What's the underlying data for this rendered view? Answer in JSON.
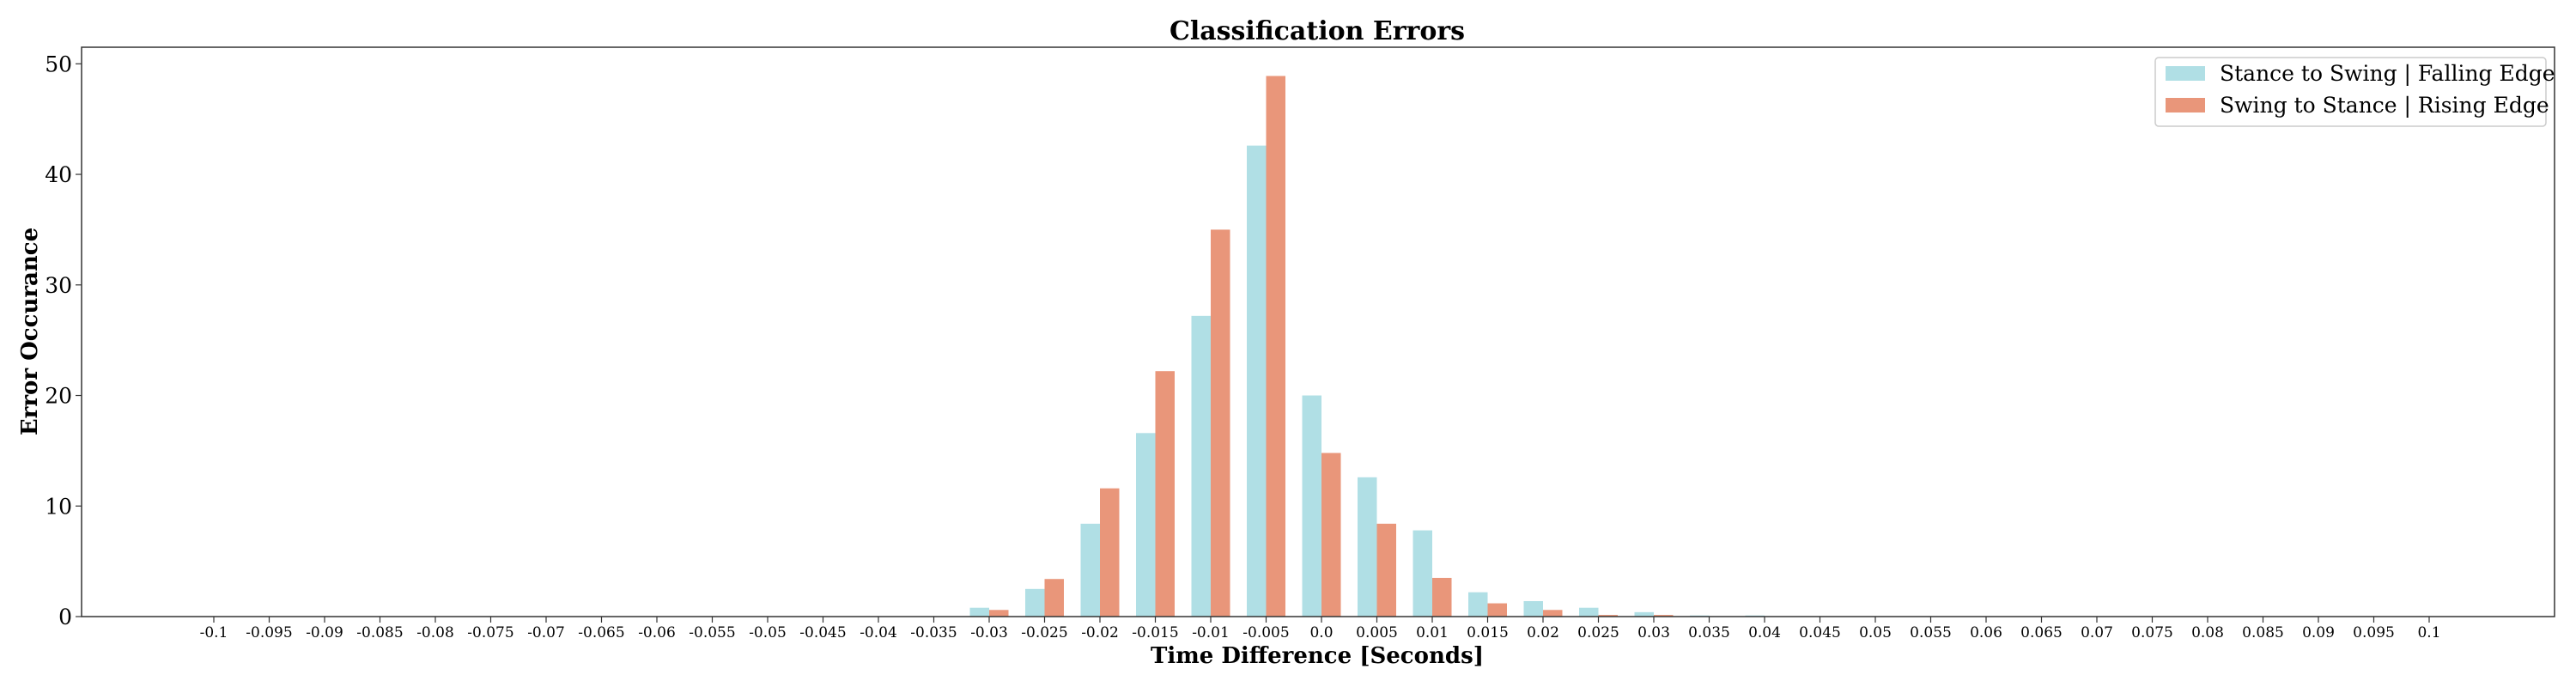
{
  "chart_data": {
    "type": "bar",
    "title": "Classification Errors",
    "xlabel": "Time Difference [Seconds]",
    "ylabel": "Error Occurance",
    "ylim": [
      0,
      51.5
    ],
    "yticks": [
      0,
      10,
      20,
      30,
      40,
      50
    ],
    "grid": false,
    "legend_position": "top-right",
    "categories": [
      "-0.1",
      "-0.095",
      "-0.09",
      "-0.085",
      "-0.08",
      "-0.075",
      "-0.07",
      "-0.065",
      "-0.06",
      "-0.055",
      "-0.05",
      "-0.045",
      "-0.04",
      "-0.035",
      "-0.03",
      "-0.025",
      "-0.02",
      "-0.015",
      "-0.01",
      "-0.005",
      "0.0",
      "0.005",
      "0.01",
      "0.015",
      "0.02",
      "0.025",
      "0.03",
      "0.035",
      "0.04",
      "0.045",
      "0.05",
      "0.055",
      "0.06",
      "0.065",
      "0.07",
      "0.075",
      "0.08",
      "0.085",
      "0.09",
      "0.095",
      "0.1"
    ],
    "series": [
      {
        "name": "Stance to Swing | Falling Edge",
        "color": "#b0dfe5",
        "values": [
          0,
          0,
          0,
          0,
          0,
          0,
          0,
          0,
          0,
          0,
          0,
          0,
          0,
          0,
          0.8,
          2.5,
          8.4,
          16.6,
          27.2,
          42.6,
          20.0,
          12.6,
          7.8,
          2.2,
          1.4,
          0.8,
          0.4,
          0.1,
          0.1,
          0,
          0,
          0,
          0,
          0,
          0,
          0,
          0,
          0,
          0,
          0,
          0
        ]
      },
      {
        "name": "Swing to Stance | Rising Edge",
        "color": "#e9967a",
        "values": [
          0,
          0,
          0,
          0,
          0,
          0,
          0,
          0,
          0,
          0,
          0,
          0,
          0,
          0,
          0.6,
          3.4,
          11.6,
          22.2,
          35.0,
          48.9,
          14.8,
          8.4,
          3.5,
          1.2,
          0.6,
          0.15,
          0.15,
          0,
          0,
          0,
          0,
          0,
          0,
          0,
          0,
          0,
          0,
          0,
          0,
          0,
          0
        ]
      }
    ]
  }
}
